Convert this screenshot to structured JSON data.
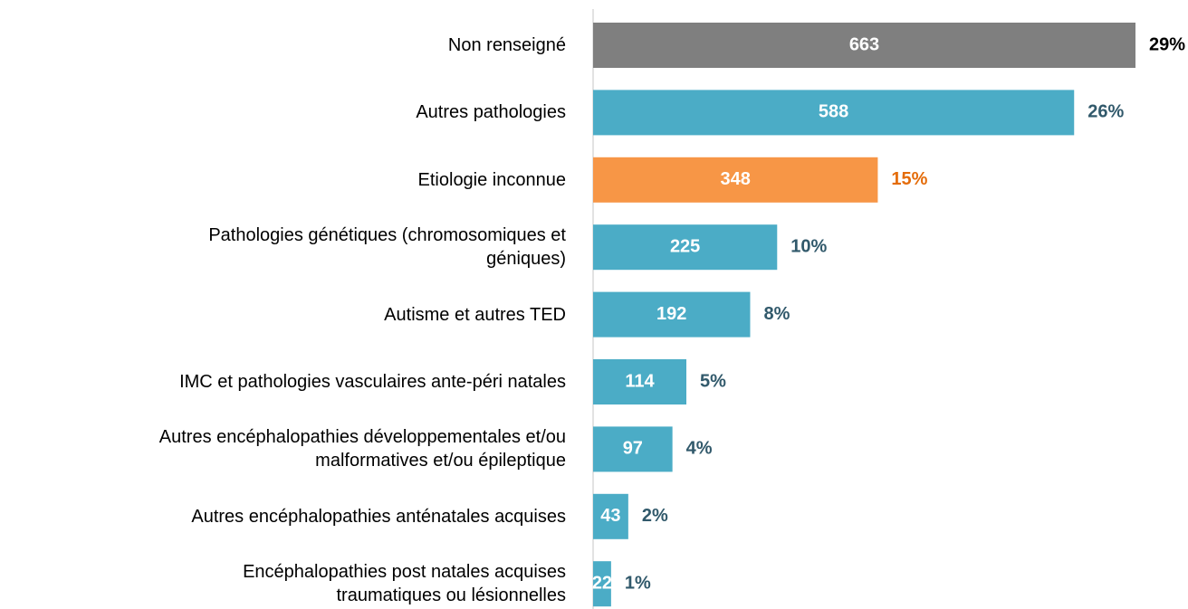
{
  "chart_data": {
    "type": "bar",
    "orientation": "horizontal",
    "categories": [
      "Non renseigné",
      "Autres pathologies",
      "Etiologie  inconnue",
      "Pathologies génétiques (chromosomiques et\ngéniques)",
      "Autisme et autres TED",
      "IMC et pathologies vasculaires ante-péri natales",
      "Autres encéphalopathies développementales et/ou\nmalformatives et/ou épileptique",
      "Autres encéphalopathies anténatales acquises",
      "Encéphalopathies  post natales acquises\ntraumatiques ou lésionnelles"
    ],
    "values": [
      663,
      588,
      348,
      225,
      192,
      114,
      97,
      43,
      22
    ],
    "shares": [
      29,
      26,
      15,
      10,
      8,
      5,
      4,
      2,
      1
    ],
    "share_labels": [
      "29%",
      "26%",
      "15%",
      "10%",
      "8%",
      "5%",
      "4%",
      "2%",
      "1%"
    ],
    "colors": [
      "#7f7f7f",
      "#4bacc6",
      "#f79646",
      "#4bacc6",
      "#4bacc6",
      "#4bacc6",
      "#4bacc6",
      "#4bacc6",
      "#4bacc6"
    ],
    "share_label_colors": [
      "#000000",
      "#31596b",
      "#e46c0a",
      "#31596b",
      "#31596b",
      "#31596b",
      "#31596b",
      "#31596b",
      "#31596b"
    ]
  }
}
